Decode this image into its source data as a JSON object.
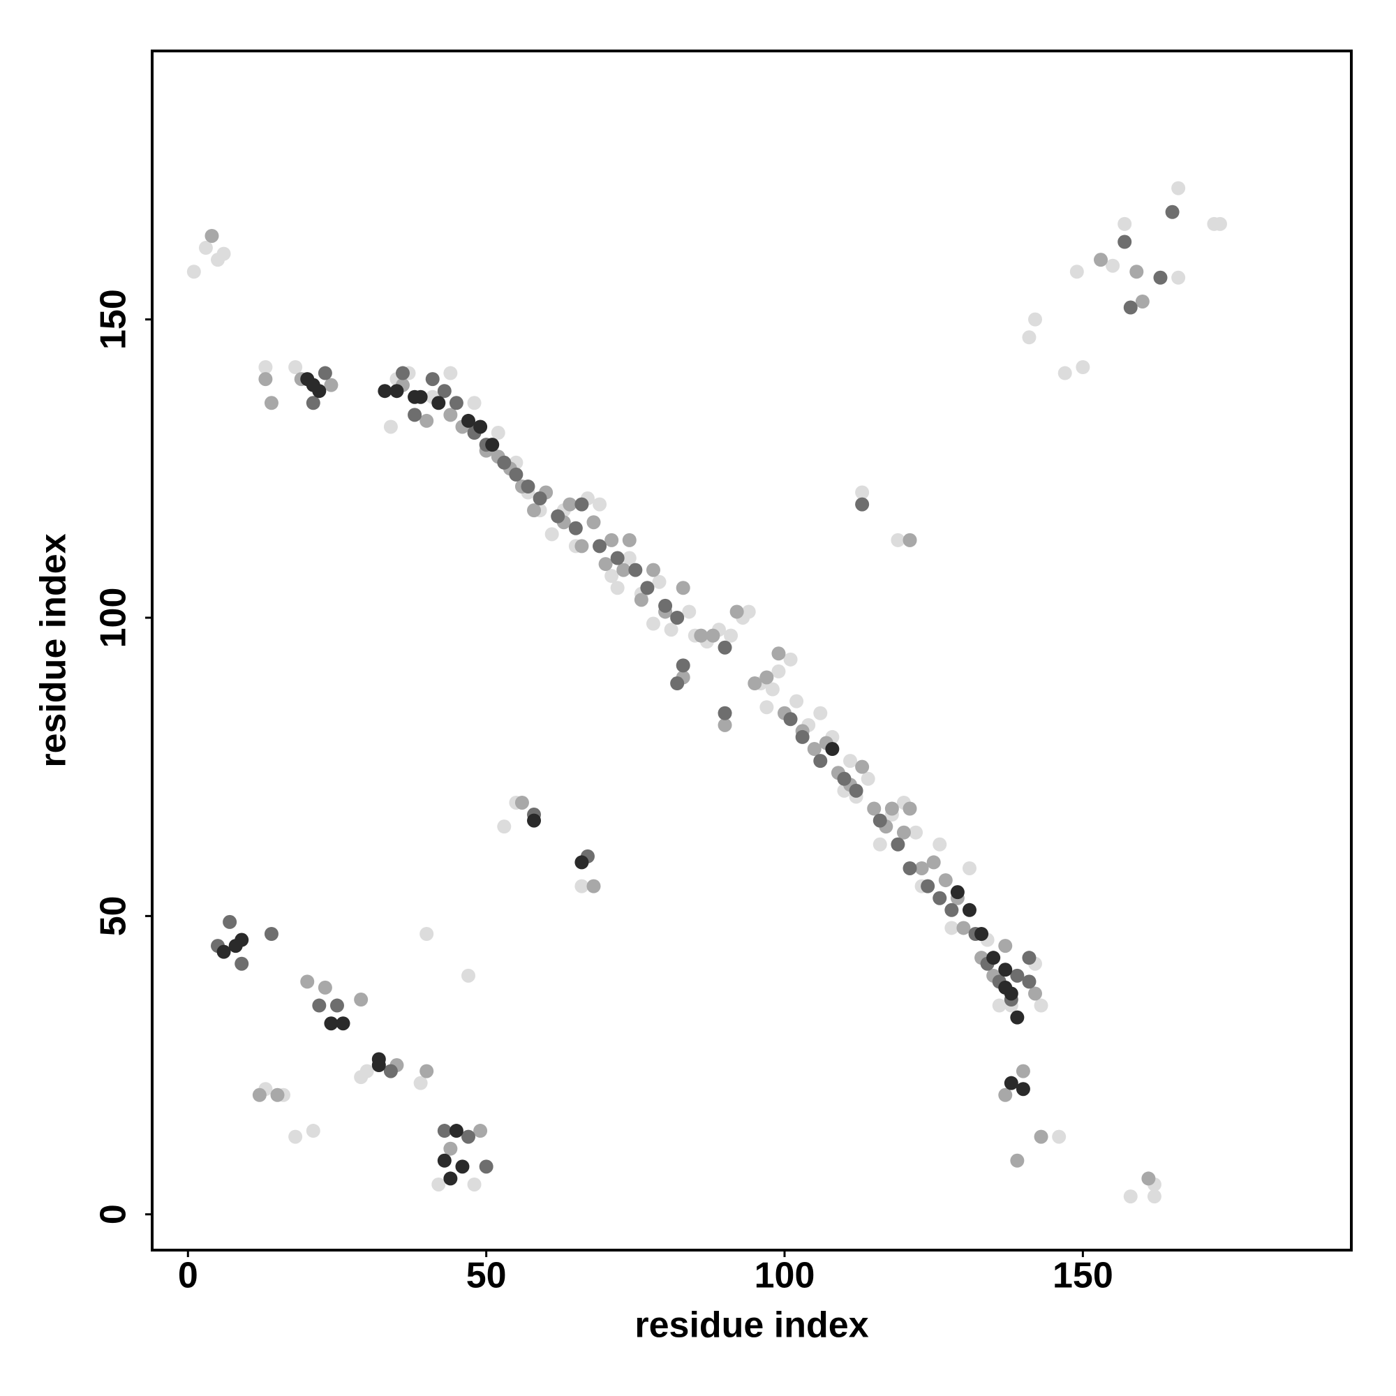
{
  "chart_data": {
    "type": "scatter",
    "xlabel": "residue index",
    "ylabel": "residue index",
    "xlim": [
      -6,
      195
    ],
    "ylim": [
      -6,
      195
    ],
    "xticks": [
      0,
      50,
      100,
      150
    ],
    "yticks": [
      0,
      50,
      100,
      150
    ],
    "grid": false,
    "series": [
      {
        "color": "#dcdcdc",
        "x": [
          1,
          5,
          3,
          6,
          13,
          18,
          35,
          37,
          34,
          41,
          44,
          48,
          52,
          55,
          57,
          59,
          61,
          63,
          65,
          67,
          69,
          71,
          72,
          74,
          76,
          78,
          79,
          81,
          84,
          85,
          87,
          89,
          91,
          93,
          94,
          96,
          97,
          98,
          99,
          101,
          102,
          104,
          106,
          108,
          110,
          111,
          112,
          114,
          116,
          118,
          120,
          122,
          123,
          126,
          128,
          131,
          134,
          136,
          138,
          142,
          143,
          146,
          53,
          55,
          66,
          40,
          47,
          29,
          30,
          39,
          13,
          16,
          18,
          21,
          42,
          48,
          119,
          121,
          113,
          141,
          142,
          147,
          150,
          149,
          155,
          157,
          162,
          166,
          172,
          173,
          158,
          162,
          166
        ],
        "values": [
          158,
          160,
          162,
          161,
          142,
          142,
          140,
          141,
          132,
          137,
          141,
          136,
          131,
          126,
          121,
          118,
          114,
          118,
          112,
          120,
          119,
          107,
          105,
          110,
          104,
          99,
          106,
          98,
          101,
          97,
          96,
          98,
          97,
          100,
          101,
          89,
          85,
          88,
          91,
          93,
          86,
          82,
          84,
          80,
          71,
          76,
          70,
          73,
          62,
          67,
          69,
          64,
          55,
          62,
          48,
          58,
          46,
          35,
          35,
          42,
          35,
          13,
          65,
          69,
          55,
          47,
          40,
          23,
          24,
          22,
          21,
          20,
          13,
          14,
          5,
          5,
          113,
          113,
          121,
          147,
          150,
          141,
          142,
          158,
          159,
          166,
          5,
          172,
          166,
          166,
          3,
          3,
          157
        ]
      },
      {
        "color": "#a8a8a8",
        "x": [
          4,
          13,
          14,
          19,
          24,
          36,
          40,
          44,
          46,
          50,
          52,
          54,
          56,
          58,
          60,
          63,
          64,
          66,
          68,
          70,
          71,
          73,
          74,
          76,
          78,
          80,
          83,
          86,
          88,
          92,
          95,
          97,
          99,
          100,
          103,
          105,
          107,
          109,
          111,
          113,
          115,
          117,
          118,
          120,
          121,
          123,
          125,
          127,
          129,
          130,
          133,
          135,
          137,
          142,
          140,
          137,
          12,
          15,
          20,
          23,
          29,
          35,
          40,
          44,
          49,
          56,
          68,
          121,
          139,
          143,
          161,
          153,
          159,
          160,
          83,
          90
        ],
        "values": [
          164,
          140,
          136,
          140,
          139,
          139,
          133,
          134,
          132,
          128,
          127,
          125,
          122,
          118,
          121,
          116,
          119,
          112,
          116,
          109,
          113,
          108,
          113,
          103,
          108,
          101,
          105,
          97,
          97,
          101,
          89,
          90,
          94,
          84,
          81,
          78,
          79,
          74,
          72,
          75,
          68,
          65,
          68,
          64,
          68,
          58,
          59,
          56,
          53,
          48,
          43,
          40,
          45,
          37,
          24,
          20,
          20,
          20,
          39,
          38,
          36,
          25,
          24,
          11,
          14,
          69,
          55,
          113,
          9,
          13,
          6,
          160,
          158,
          153,
          90,
          82
        ]
      },
      {
        "color": "#6e6e6e",
        "x": [
          23,
          21,
          36,
          38,
          41,
          43,
          45,
          48,
          50,
          53,
          55,
          57,
          59,
          62,
          65,
          66,
          69,
          72,
          75,
          77,
          80,
          82,
          90,
          90,
          101,
          103,
          106,
          110,
          112,
          116,
          119,
          121,
          124,
          126,
          128,
          132,
          134,
          136,
          141,
          139,
          7,
          5,
          9,
          14,
          25,
          22,
          34,
          43,
          47,
          50,
          58,
          67,
          138,
          141,
          158,
          163,
          157,
          165,
          113,
          82,
          83
        ],
        "values": [
          141,
          136,
          141,
          134,
          140,
          138,
          136,
          131,
          129,
          126,
          124,
          122,
          120,
          117,
          115,
          119,
          112,
          110,
          108,
          105,
          102,
          100,
          95,
          84,
          83,
          80,
          76,
          73,
          71,
          66,
          62,
          58,
          55,
          53,
          51,
          47,
          42,
          39,
          43,
          40,
          49,
          45,
          42,
          47,
          35,
          35,
          24,
          14,
          13,
          8,
          67,
          60,
          36,
          39,
          152,
          157,
          163,
          168,
          119,
          89,
          92
        ]
      },
      {
        "color": "#2a2a2a",
        "x": [
          21,
          20,
          22,
          39,
          42,
          47,
          49,
          51,
          38,
          33,
          35,
          9,
          8,
          6,
          26,
          24,
          32,
          32,
          43,
          44,
          46,
          45,
          58,
          66,
          133,
          135,
          137,
          138,
          137,
          139,
          138,
          140,
          131,
          129,
          108
        ],
        "values": [
          139,
          140,
          138,
          137,
          136,
          133,
          132,
          129,
          137,
          138,
          138,
          46,
          45,
          44,
          32,
          32,
          26,
          25,
          9,
          6,
          8,
          14,
          66,
          59,
          47,
          43,
          41,
          37,
          38,
          33,
          22,
          21,
          51,
          54,
          78
        ]
      }
    ]
  }
}
